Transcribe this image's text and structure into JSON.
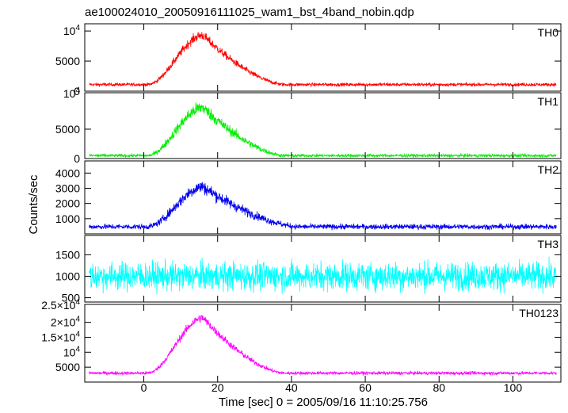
{
  "chart_data": {
    "type": "line",
    "title": "ae100024010_20050916111025_wam1_bst_4band_nobin.qdp",
    "xlabel": "Time [sec] 0 = 2005/09/16 11:10:25.756",
    "ylabel": "Counts/sec",
    "xlim": [
      -16,
      113
    ],
    "x_ticks": [
      0,
      20,
      40,
      60,
      80,
      100
    ],
    "x_tick_labels": [
      "0",
      "20",
      "40",
      "60",
      "80",
      "100"
    ],
    "grid": false,
    "panels": [
      {
        "name": "TH0",
        "color": "#ff0000",
        "ylim": [
          0,
          11200
        ],
        "y_ticks": [
          0,
          5000,
          10000
        ],
        "y_tick_labels": [
          "0",
          "5000",
          "10⁴"
        ],
        "baseline": 1100,
        "peak": 9300,
        "peak_time": 16,
        "rise_start": 1,
        "decay_end": 38,
        "noise": 350
      },
      {
        "name": "TH1",
        "color": "#00ee00",
        "ylim": [
          0,
          11200
        ],
        "y_ticks": [
          0,
          5000
        ],
        "y_tick_labels": [
          "0",
          "5000"
        ],
        "top_label": "10⁴",
        "baseline": 500,
        "peak": 8700,
        "peak_time": 16,
        "rise_start": 1,
        "decay_end": 38,
        "noise": 350
      },
      {
        "name": "TH2",
        "color": "#0000ee",
        "ylim": [
          0,
          4800
        ],
        "y_ticks": [
          1000,
          2000,
          3000,
          4000
        ],
        "y_tick_labels": [
          "1000",
          "2000",
          "3000",
          "4000"
        ],
        "baseline": 470,
        "peak": 3100,
        "peak_time": 16,
        "rise_start": 1,
        "decay_end": 42,
        "noise": 220
      },
      {
        "name": "TH3",
        "color": "#00ffff",
        "ylim": [
          400,
          1950
        ],
        "y_ticks": [
          500,
          1000,
          1500
        ],
        "y_tick_labels": [
          "500",
          "1000",
          "1500"
        ],
        "baseline": 1000,
        "peak": 1000,
        "peak_time": 16,
        "rise_start": 1,
        "decay_end": 38,
        "noise": 230
      },
      {
        "name": "TH0123",
        "color": "#ff00ff",
        "ylim": [
          0,
          26000
        ],
        "y_ticks": [
          5000,
          10000,
          15000,
          20000
        ],
        "y_tick_labels": [
          "5000",
          "10⁴",
          "1.5×10⁴",
          "2×10⁴"
        ],
        "top_label": "2.5×10⁴",
        "baseline": 3000,
        "peak": 21500,
        "peak_time": 16,
        "rise_start": 1,
        "decay_end": 38,
        "noise": 700
      }
    ]
  }
}
